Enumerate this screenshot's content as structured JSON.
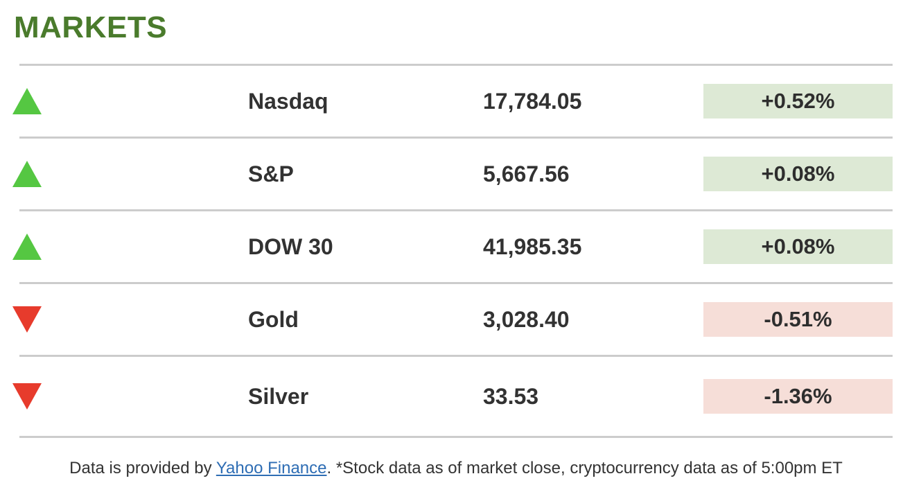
{
  "page": {
    "title": "MARKETS"
  },
  "rows": [
    {
      "name": "Nasdaq",
      "value": "17,784.05",
      "change": "+0.52%",
      "direction": "up"
    },
    {
      "name": "S&P",
      "value": "5,667.56",
      "change": "+0.08%",
      "direction": "up"
    },
    {
      "name": "DOW 30",
      "value": "41,985.35",
      "change": "+0.08%",
      "direction": "up"
    },
    {
      "name": "Gold",
      "value": "3,028.40",
      "change": "-0.51%",
      "direction": "down"
    },
    {
      "name": "Silver",
      "value": "33.53",
      "change": "-1.36%",
      "direction": "down"
    }
  ],
  "footer": {
    "prefix": "Data is provided by ",
    "link_text": "Yahoo Finance",
    "suffix": ". *Stock data as of market close, cryptocurrency data as of 5:00pm ET"
  },
  "colors": {
    "title_green": "#4a7b2c",
    "up_triangle": "#55c742",
    "down_triangle": "#e73b2c",
    "positive_badge_bg": "#dde9d5",
    "negative_badge_bg": "#f6ded8",
    "divider": "#cccccc",
    "text": "#333333",
    "link_blue": "#2e6db4"
  }
}
